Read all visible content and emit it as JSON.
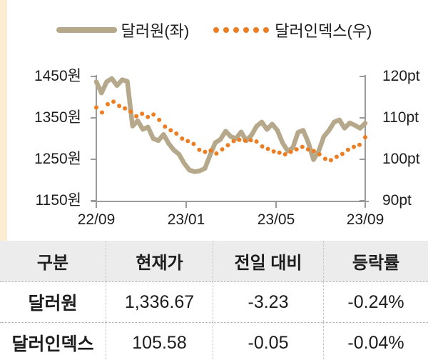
{
  "legend": {
    "series1_label": "달러원(좌)",
    "series2_label": "달러인덱스(우)"
  },
  "colors": {
    "krw_line": "#b6a88a",
    "dxy_dots": "#ed7d22",
    "axis": "#9b9b9b",
    "stripe": "#fbecd2",
    "table_header_bg": "#ececec",
    "text": "#1d1d1d"
  },
  "chart_data": {
    "type": "line",
    "title": "",
    "xlabel": "",
    "ylabel_left": "원",
    "ylabel_right": "pt",
    "grid": false,
    "legend_position": "top",
    "x_ticks": [
      "22/09",
      "23/01",
      "23/05",
      "23/09"
    ],
    "y_left_ticks": [
      "1450원",
      "1350원",
      "1250원",
      "1150원"
    ],
    "y_right_ticks": [
      "120pt",
      "110pt",
      "100pt",
      "90pt"
    ],
    "y_left_range": [
      1150,
      1450
    ],
    "y_right_range": [
      90,
      120
    ],
    "series": [
      {
        "name": "달러원(좌)",
        "axis": "left",
        "style": "line",
        "values": [
          1437,
          1410,
          1437,
          1445,
          1428,
          1442,
          1438,
          1330,
          1343,
          1322,
          1328,
          1300,
          1295,
          1310,
          1288,
          1272,
          1262,
          1240,
          1224,
          1220,
          1222,
          1228,
          1260,
          1290,
          1298,
          1318,
          1305,
          1300,
          1316,
          1295,
          1308,
          1330,
          1340,
          1322,
          1335,
          1320,
          1290,
          1270,
          1278,
          1315,
          1320,
          1290,
          1249,
          1270,
          1305,
          1320,
          1340,
          1345,
          1325,
          1338,
          1332,
          1325,
          1337
        ]
      },
      {
        "name": "달러인덱스(우)",
        "axis": "right",
        "style": "dots",
        "values": [
          112.5,
          111.3,
          113.3,
          113.9,
          112.9,
          112.3,
          111.5,
          110.4,
          111.0,
          110.2,
          110.8,
          109.5,
          107.9,
          107.0,
          106.2,
          105.0,
          104.4,
          103.7,
          102.3,
          101.8,
          102.1,
          101.4,
          102.4,
          103.4,
          104.4,
          104.7,
          104.5,
          104.6,
          104.3,
          103.1,
          102.5,
          101.9,
          101.6,
          101.2,
          101.8,
          102.4,
          103.0,
          102.4,
          102.0,
          101.2,
          100.1,
          99.8,
          100.6,
          101.3,
          102.3,
          103.0,
          103.5,
          105.3
        ]
      }
    ]
  },
  "table": {
    "headers": [
      "구분",
      "현재가",
      "전일 대비",
      "등락률"
    ],
    "rows": [
      {
        "label": "달러원",
        "values": [
          "1,336.67",
          "-3.23",
          "-0.24%"
        ]
      },
      {
        "label": "달러인덱스",
        "values": [
          "105.58",
          "-0.05",
          "-0.04%"
        ]
      }
    ]
  }
}
